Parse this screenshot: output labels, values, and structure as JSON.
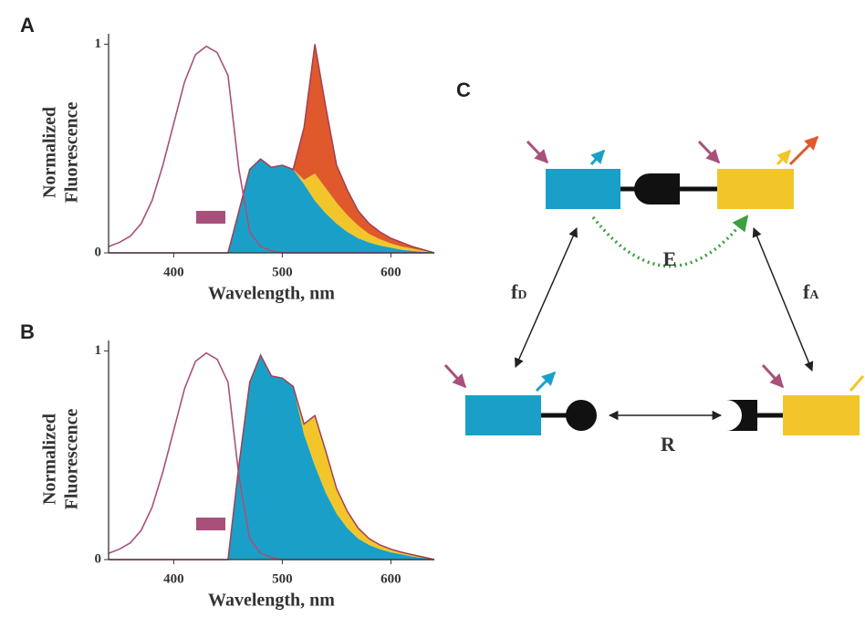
{
  "chart_data": [
    {
      "type": "area",
      "panel_label": "A",
      "ylabel": [
        "Normalized",
        "Fluorescence"
      ],
      "xlabel": "Wavelength, nm",
      "xlim": [
        340,
        640
      ],
      "xticks": [
        400,
        500,
        600
      ],
      "ylim": [
        0,
        1.05
      ],
      "yticks": [
        0,
        1
      ],
      "stacked": true,
      "outline_color": "#a23f52",
      "x": [
        340,
        350,
        360,
        370,
        380,
        390,
        400,
        410,
        420,
        430,
        440,
        450,
        460,
        470,
        480,
        490,
        500,
        510,
        520,
        530,
        540,
        550,
        560,
        570,
        580,
        590,
        600,
        610,
        620,
        630,
        640
      ],
      "series": [
        {
          "style": "line",
          "color": "#a8507a",
          "values": [
            0.03,
            0.05,
            0.08,
            0.14,
            0.25,
            0.42,
            0.62,
            0.82,
            0.95,
            0.99,
            0.96,
            0.85,
            0.4,
            0.1,
            0.03,
            0.01,
            0,
            0,
            0,
            0,
            0,
            0,
            0,
            0,
            0,
            0,
            0,
            0,
            0,
            0,
            0
          ]
        },
        {
          "style": "area",
          "color": "#1aa0c8",
          "values": [
            0,
            0,
            0,
            0,
            0,
            0,
            0,
            0,
            0,
            0,
            0,
            0,
            0.2,
            0.4,
            0.45,
            0.41,
            0.42,
            0.4,
            0.33,
            0.25,
            0.19,
            0.14,
            0.1,
            0.07,
            0.05,
            0.035,
            0.025,
            0.015,
            0.01,
            0.005,
            0
          ]
        },
        {
          "style": "area",
          "color": "#f2c62a",
          "values": [
            0,
            0,
            0,
            0,
            0,
            0,
            0,
            0,
            0,
            0,
            0,
            0,
            0,
            0,
            0,
            0,
            0,
            0,
            0.02,
            0.13,
            0.12,
            0.1,
            0.08,
            0.06,
            0.04,
            0.03,
            0.02,
            0.015,
            0.01,
            0.005,
            0
          ]
        },
        {
          "style": "area",
          "color": "#e0592c",
          "values": [
            0,
            0,
            0,
            0,
            0,
            0,
            0,
            0,
            0,
            0,
            0,
            0,
            0,
            0,
            0,
            0,
            0,
            0,
            0.25,
            0.62,
            0.39,
            0.18,
            0.12,
            0.07,
            0.05,
            0.035,
            0.025,
            0.02,
            0.01,
            0.005,
            0
          ]
        }
      ]
    },
    {
      "type": "area",
      "panel_label": "B",
      "ylabel": [
        "Normalized",
        "Fluorescence"
      ],
      "xlabel": "Wavelength, nm",
      "xlim": [
        340,
        640
      ],
      "xticks": [
        400,
        500,
        600
      ],
      "ylim": [
        0,
        1.05
      ],
      "yticks": [
        0,
        1
      ],
      "stacked": true,
      "outline_color": "#a23f52",
      "x": [
        340,
        350,
        360,
        370,
        380,
        390,
        400,
        410,
        420,
        430,
        440,
        450,
        460,
        470,
        480,
        490,
        500,
        510,
        520,
        530,
        540,
        550,
        560,
        570,
        580,
        590,
        600,
        610,
        620,
        630,
        640
      ],
      "series": [
        {
          "style": "line",
          "color": "#a8507a",
          "values": [
            0.03,
            0.05,
            0.08,
            0.14,
            0.25,
            0.42,
            0.62,
            0.82,
            0.95,
            0.99,
            0.96,
            0.85,
            0.4,
            0.1,
            0.03,
            0.01,
            0,
            0,
            0,
            0,
            0,
            0,
            0,
            0,
            0,
            0,
            0,
            0,
            0,
            0,
            0
          ]
        },
        {
          "style": "area",
          "color": "#1aa0c8",
          "values": [
            0,
            0,
            0,
            0,
            0,
            0,
            0,
            0,
            0,
            0,
            0,
            0,
            0.45,
            0.85,
            0.98,
            0.88,
            0.87,
            0.83,
            0.6,
            0.45,
            0.32,
            0.22,
            0.15,
            0.1,
            0.07,
            0.05,
            0.035,
            0.025,
            0.015,
            0.008,
            0
          ]
        },
        {
          "style": "area",
          "color": "#f2c62a",
          "values": [
            0,
            0,
            0,
            0,
            0,
            0,
            0,
            0,
            0,
            0,
            0,
            0,
            0,
            0,
            0,
            0,
            0,
            0,
            0.05,
            0.24,
            0.2,
            0.12,
            0.08,
            0.05,
            0.03,
            0.02,
            0.015,
            0.01,
            0.008,
            0.004,
            0
          ]
        }
      ]
    }
  ],
  "diagram": {
    "panel_label": "C",
    "labels": {
      "transfer": "E",
      "donor_fraction": {
        "symbol": "f",
        "subscript": "D"
      },
      "acceptor_fraction": {
        "symbol": "f",
        "subscript": "A"
      },
      "binding": "R"
    }
  }
}
